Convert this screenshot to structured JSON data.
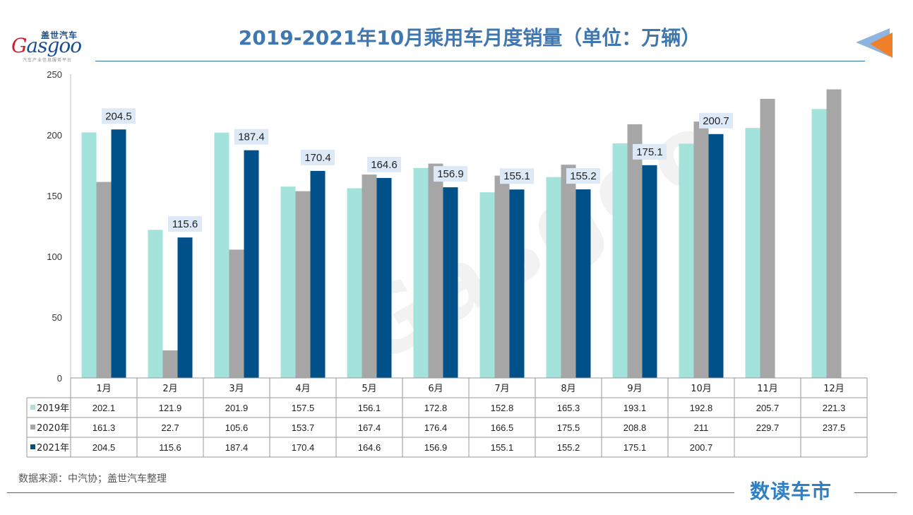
{
  "title": "2019-2021年10月乘用车月度销量（单位：万辆）",
  "logo": {
    "cn": "盖世汽车",
    "en_main": "asgoo",
    "en_initial": "G",
    "sub": "汽车产业信息服务平台"
  },
  "watermark": "Gasgoo",
  "source": "数据来源：中汽协；盖世汽车整理",
  "brand": "数读车市",
  "colors": {
    "s2019": "#a3e3dc",
    "s2020": "#a6a6a6",
    "s2021": "#00508a",
    "accent": "#2f6fa6"
  },
  "chart_data": {
    "type": "bar",
    "title": "2019-2021年10月乘用车月度销量（单位：万辆）",
    "categories": [
      "1月",
      "2月",
      "3月",
      "4月",
      "5月",
      "6月",
      "7月",
      "8月",
      "9月",
      "10月",
      "11月",
      "12月"
    ],
    "ylim": [
      0,
      250
    ],
    "yticks": [
      0,
      50,
      100,
      150,
      200,
      250
    ],
    "series": [
      {
        "name": "2019年",
        "values": [
          202.1,
          121.9,
          201.9,
          157.5,
          156.1,
          172.8,
          152.8,
          165.3,
          193.1,
          192.8,
          205.7,
          221.3
        ]
      },
      {
        "name": "2020年",
        "values": [
          161.3,
          22.7,
          105.6,
          153.7,
          167.4,
          176.4,
          166.5,
          175.5,
          208.8,
          211,
          229.7,
          237.5
        ]
      },
      {
        "name": "2021年",
        "values": [
          204.5,
          115.6,
          187.4,
          170.4,
          164.6,
          156.9,
          155.1,
          155.2,
          175.1,
          200.7,
          null,
          null
        ]
      }
    ],
    "data_labels_series": "2021年"
  }
}
